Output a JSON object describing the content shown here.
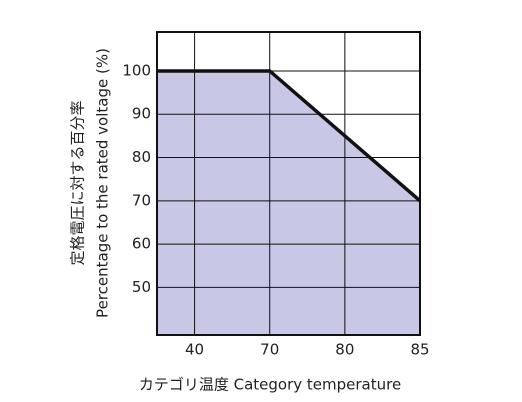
{
  "chart_data": {
    "type": "area",
    "y_label_lines": [
      "定格電圧に対する百分率",
      "Percentage to the rated voltage (%)"
    ],
    "x_label": "カテゴリ温度 Category temperature",
    "x": [
      35,
      70,
      85
    ],
    "y": [
      100,
      100,
      70
    ],
    "fill": "#c8c8e6",
    "color": "#111111",
    "xlim": [
      35,
      85
    ],
    "xticks": [
      40,
      70,
      80,
      85
    ],
    "ylim": [
      39,
      109
    ],
    "yticks": [
      50,
      60,
      70,
      80,
      90,
      100
    ],
    "grid": true
  }
}
